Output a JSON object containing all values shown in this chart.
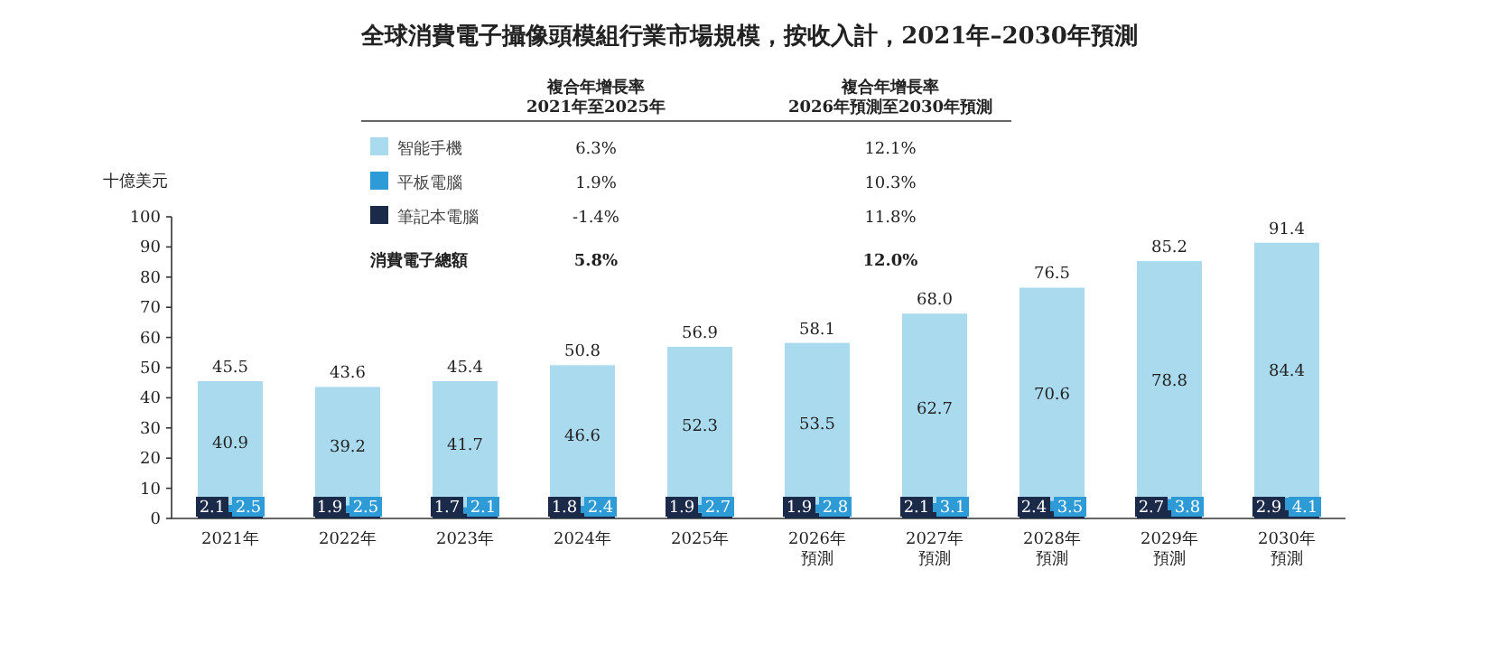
{
  "chart_data": {
    "type": "bar",
    "title": "全球消費電子攝像頭模組行業市場規模，按收入計，2021年–2030年預測",
    "ylabel": "十億美元",
    "categories": [
      "2021年",
      "2022年",
      "2023年",
      "2024年",
      "2025年",
      "2026年預測",
      "2027年預測",
      "2028年預測",
      "2029年預測",
      "2030年預測"
    ],
    "stacked": true,
    "series": [
      {
        "name": "筆記本電腦",
        "color": "#1c2a4a",
        "values": [
          2.1,
          1.9,
          1.7,
          1.8,
          1.9,
          1.9,
          2.1,
          2.4,
          2.7,
          2.9
        ]
      },
      {
        "name": "平板電腦",
        "color": "#2e9bd6",
        "values": [
          2.5,
          2.5,
          2.1,
          2.4,
          2.7,
          2.8,
          3.1,
          3.5,
          3.8,
          4.1
        ]
      },
      {
        "name": "智能手機",
        "color": "#a9daee",
        "values": [
          40.9,
          39.2,
          41.7,
          46.6,
          52.3,
          53.5,
          62.7,
          70.6,
          78.8,
          84.4
        ]
      }
    ],
    "totals": [
      "45.5",
      "43.6",
      "45.4",
      "50.8",
      "56.9",
      "58.1",
      "68.0",
      "76.5",
      "85.2",
      "91.4"
    ],
    "data_labels": true,
    "ylim": [
      0,
      100
    ],
    "yticks": [
      0,
      10,
      20,
      30,
      40,
      50,
      60,
      70,
      80,
      90,
      100
    ],
    "grid": false,
    "legend": "top left",
    "annotations": [
      "複合年增長率\n2021年至2025年",
      "複合年增長率\n2026年預測至2030年預測",
      "6.3%",
      "12.1%",
      "1.9%",
      "10.3%",
      "-1.4%",
      "11.8%",
      "消費電子總額",
      "5.8%",
      "12.0%"
    ]
  }
}
